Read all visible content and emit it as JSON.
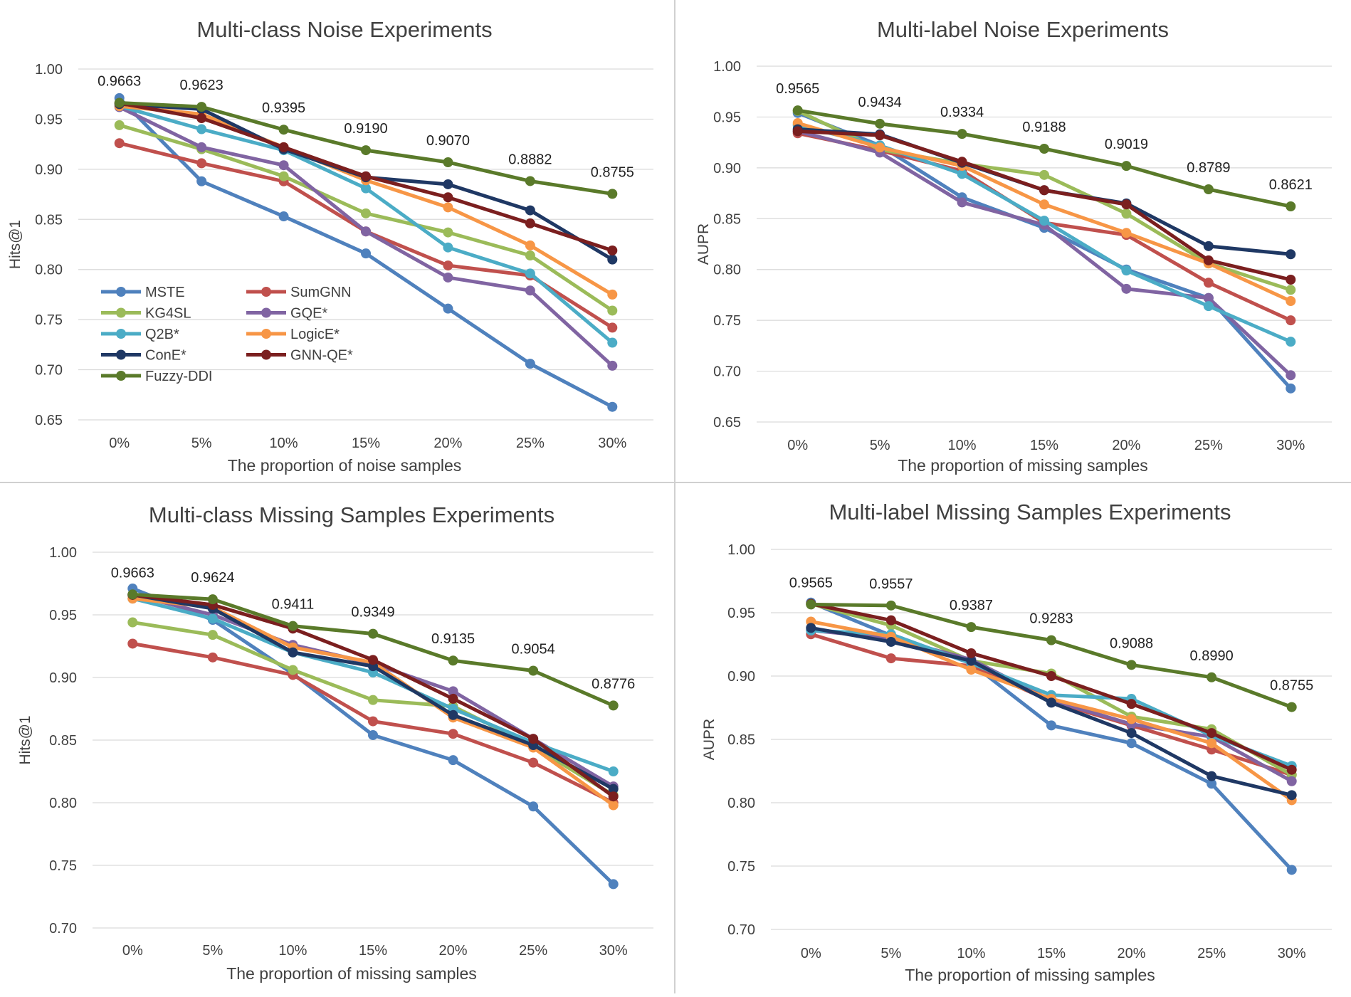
{
  "colors": {
    "MSTE": "#4F81BD",
    "SumGNN": "#C0504D",
    "KG4SL": "#9BBB59",
    "GQE*": "#8064A2",
    "Q2B*": "#4BACC6",
    "LogicE*": "#F79646",
    "ConE*": "#1F3864",
    "GNN-QE*": "#7B1F1F",
    "Fuzzy-DDI": "#5A7A2A"
  },
  "chart_data": [
    {
      "type": "line",
      "title": "Multi-class Noise Experiments",
      "xlabel": "The proportion of noise samples",
      "ylabel": "Hits@1",
      "categories": [
        "0%",
        "5%",
        "10%",
        "15%",
        "20%",
        "25%",
        "30%"
      ],
      "ylim": [
        0.65,
        1.0
      ],
      "yticks": [
        "0.65",
        "0.70",
        "0.75",
        "0.80",
        "0.85",
        "0.90",
        "0.95",
        "1.00"
      ],
      "grid": true,
      "legend": "bottom-left",
      "series": [
        {
          "name": "MSTE",
          "values": [
            0.971,
            0.888,
            0.853,
            0.816,
            0.761,
            0.706,
            0.663
          ]
        },
        {
          "name": "SumGNN",
          "values": [
            0.926,
            0.906,
            0.888,
            0.838,
            0.804,
            0.794,
            0.742
          ]
        },
        {
          "name": "KG4SL",
          "values": [
            0.944,
            0.92,
            0.893,
            0.856,
            0.837,
            0.814,
            0.759
          ]
        },
        {
          "name": "GQE*",
          "values": [
            0.962,
            0.922,
            0.904,
            0.838,
            0.792,
            0.779,
            0.704
          ]
        },
        {
          "name": "Q2B*",
          "values": [
            0.963,
            0.94,
            0.919,
            0.881,
            0.822,
            0.796,
            0.727
          ]
        },
        {
          "name": "LogicE*",
          "values": [
            0.963,
            0.955,
            0.922,
            0.889,
            0.862,
            0.824,
            0.775
          ]
        },
        {
          "name": "ConE*",
          "values": [
            0.965,
            0.96,
            0.92,
            0.892,
            0.885,
            0.859,
            0.81
          ]
        },
        {
          "name": "GNN-QE*",
          "values": [
            0.966,
            0.951,
            0.922,
            0.893,
            0.872,
            0.846,
            0.819
          ]
        },
        {
          "name": "Fuzzy-DDI",
          "values": [
            0.9663,
            0.9623,
            0.9395,
            0.919,
            0.907,
            0.8882,
            0.8755
          ]
        }
      ],
      "annotations": [
        "0.9663",
        "0.9623",
        "0.9395",
        "0.9190",
        "0.9070",
        "0.8882",
        "0.8755"
      ]
    },
    {
      "type": "line",
      "title": "Multi-label Noise Experiments",
      "xlabel": "The proportion of missing samples",
      "ylabel": "AUPR",
      "categories": [
        "0%",
        "5%",
        "10%",
        "15%",
        "20%",
        "25%",
        "30%"
      ],
      "ylim": [
        0.65,
        1.0
      ],
      "yticks": [
        "0.65",
        "0.70",
        "0.75",
        "0.80",
        "0.85",
        "0.90",
        "0.95",
        "1.00"
      ],
      "grid": true,
      "series": [
        {
          "name": "MSTE",
          "values": [
            0.954,
            0.922,
            0.871,
            0.841,
            0.8,
            0.772,
            0.683
          ]
        },
        {
          "name": "SumGNN",
          "values": [
            0.934,
            0.917,
            0.897,
            0.846,
            0.834,
            0.787,
            0.75
          ]
        },
        {
          "name": "KG4SL",
          "values": [
            0.956,
            0.918,
            0.904,
            0.893,
            0.855,
            0.806,
            0.78
          ]
        },
        {
          "name": "GQE*",
          "values": [
            0.936,
            0.915,
            0.866,
            0.844,
            0.781,
            0.772,
            0.696
          ]
        },
        {
          "name": "Q2B*",
          "values": [
            0.942,
            0.922,
            0.894,
            0.848,
            0.799,
            0.764,
            0.729
          ]
        },
        {
          "name": "LogicE*",
          "values": [
            0.944,
            0.92,
            0.902,
            0.864,
            0.836,
            0.806,
            0.769
          ]
        },
        {
          "name": "ConE*",
          "values": [
            0.938,
            0.933,
            0.905,
            0.878,
            0.865,
            0.823,
            0.815
          ]
        },
        {
          "name": "GNN-QE*",
          "values": [
            0.936,
            0.932,
            0.906,
            0.878,
            0.864,
            0.809,
            0.79
          ]
        },
        {
          "name": "Fuzzy-DDI",
          "values": [
            0.9565,
            0.9434,
            0.9334,
            0.9188,
            0.9019,
            0.8789,
            0.8621
          ]
        }
      ],
      "annotations": [
        "0.9565",
        "0.9434",
        "0.9334",
        "0.9188",
        "0.9019",
        "0.8789",
        "0.8621"
      ]
    },
    {
      "type": "line",
      "title": "Multi-class Missing Samples Experiments",
      "xlabel": "The proportion of missing samples",
      "ylabel": "Hits@1",
      "categories": [
        "0%",
        "5%",
        "10%",
        "15%",
        "20%",
        "25%",
        "30%"
      ],
      "ylim": [
        0.7,
        1.0
      ],
      "yticks": [
        "0.70",
        "0.75",
        "0.80",
        "0.85",
        "0.90",
        "0.95",
        "1.00"
      ],
      "grid": true,
      "series": [
        {
          "name": "MSTE",
          "values": [
            0.971,
            0.946,
            0.903,
            0.854,
            0.834,
            0.797,
            0.735
          ]
        },
        {
          "name": "SumGNN",
          "values": [
            0.927,
            0.916,
            0.902,
            0.865,
            0.855,
            0.832,
            0.8
          ]
        },
        {
          "name": "KG4SL",
          "values": [
            0.944,
            0.934,
            0.906,
            0.882,
            0.877,
            0.845,
            0.806
          ]
        },
        {
          "name": "GQE*",
          "values": [
            0.966,
            0.95,
            0.926,
            0.911,
            0.889,
            0.851,
            0.813
          ]
        },
        {
          "name": "Q2B*",
          "values": [
            0.963,
            0.947,
            0.92,
            0.904,
            0.875,
            0.848,
            0.825
          ]
        },
        {
          "name": "LogicE*",
          "values": [
            0.963,
            0.956,
            0.924,
            0.912,
            0.868,
            0.844,
            0.798
          ]
        },
        {
          "name": "ConE*",
          "values": [
            0.966,
            0.955,
            0.92,
            0.909,
            0.87,
            0.846,
            0.811
          ]
        },
        {
          "name": "GNN-QE*",
          "values": [
            0.966,
            0.958,
            0.939,
            0.914,
            0.883,
            0.851,
            0.805
          ]
        },
        {
          "name": "Fuzzy-DDI",
          "values": [
            0.9663,
            0.9624,
            0.9411,
            0.9349,
            0.9135,
            0.9054,
            0.8776
          ]
        }
      ],
      "annotations": [
        "0.9663",
        "0.9624",
        "0.9411",
        "0.9349",
        "0.9135",
        "0.9054",
        "0.8776"
      ]
    },
    {
      "type": "line",
      "title": "Multi-label Missing Samples Experiments",
      "xlabel": "The proportion of missing samples",
      "ylabel": "AUPR",
      "categories": [
        "0%",
        "5%",
        "10%",
        "15%",
        "20%",
        "25%",
        "30%"
      ],
      "ylim": [
        0.7,
        1.0
      ],
      "yticks": [
        "0.70",
        "0.75",
        "0.80",
        "0.85",
        "0.90",
        "0.95",
        "1.00"
      ],
      "grid": true,
      "series": [
        {
          "name": "MSTE",
          "values": [
            0.958,
            0.932,
            0.91,
            0.861,
            0.847,
            0.815,
            0.747
          ]
        },
        {
          "name": "SumGNN",
          "values": [
            0.933,
            0.914,
            0.908,
            0.88,
            0.861,
            0.842,
            0.822
          ]
        },
        {
          "name": "KG4SL",
          "values": [
            0.957,
            0.94,
            0.912,
            0.902,
            0.868,
            0.858,
            0.822
          ]
        },
        {
          "name": "GQE*",
          "values": [
            0.936,
            0.93,
            0.913,
            0.881,
            0.862,
            0.852,
            0.817
          ]
        },
        {
          "name": "Q2B*",
          "values": [
            0.936,
            0.933,
            0.91,
            0.885,
            0.882,
            0.853,
            0.829
          ]
        },
        {
          "name": "LogicE*",
          "values": [
            0.943,
            0.931,
            0.905,
            0.882,
            0.866,
            0.847,
            0.802
          ]
        },
        {
          "name": "ConE*",
          "values": [
            0.938,
            0.927,
            0.912,
            0.879,
            0.855,
            0.821,
            0.806
          ]
        },
        {
          "name": "GNN-QE*",
          "values": [
            0.957,
            0.944,
            0.918,
            0.9,
            0.878,
            0.855,
            0.826
          ]
        },
        {
          "name": "Fuzzy-DDI",
          "values": [
            0.9565,
            0.9557,
            0.9387,
            0.9283,
            0.9088,
            0.899,
            0.8755
          ]
        }
      ],
      "annotations": [
        "0.9565",
        "0.9557",
        "0.9387",
        "0.9283",
        "0.9088",
        "0.8990",
        "0.8755"
      ]
    }
  ]
}
